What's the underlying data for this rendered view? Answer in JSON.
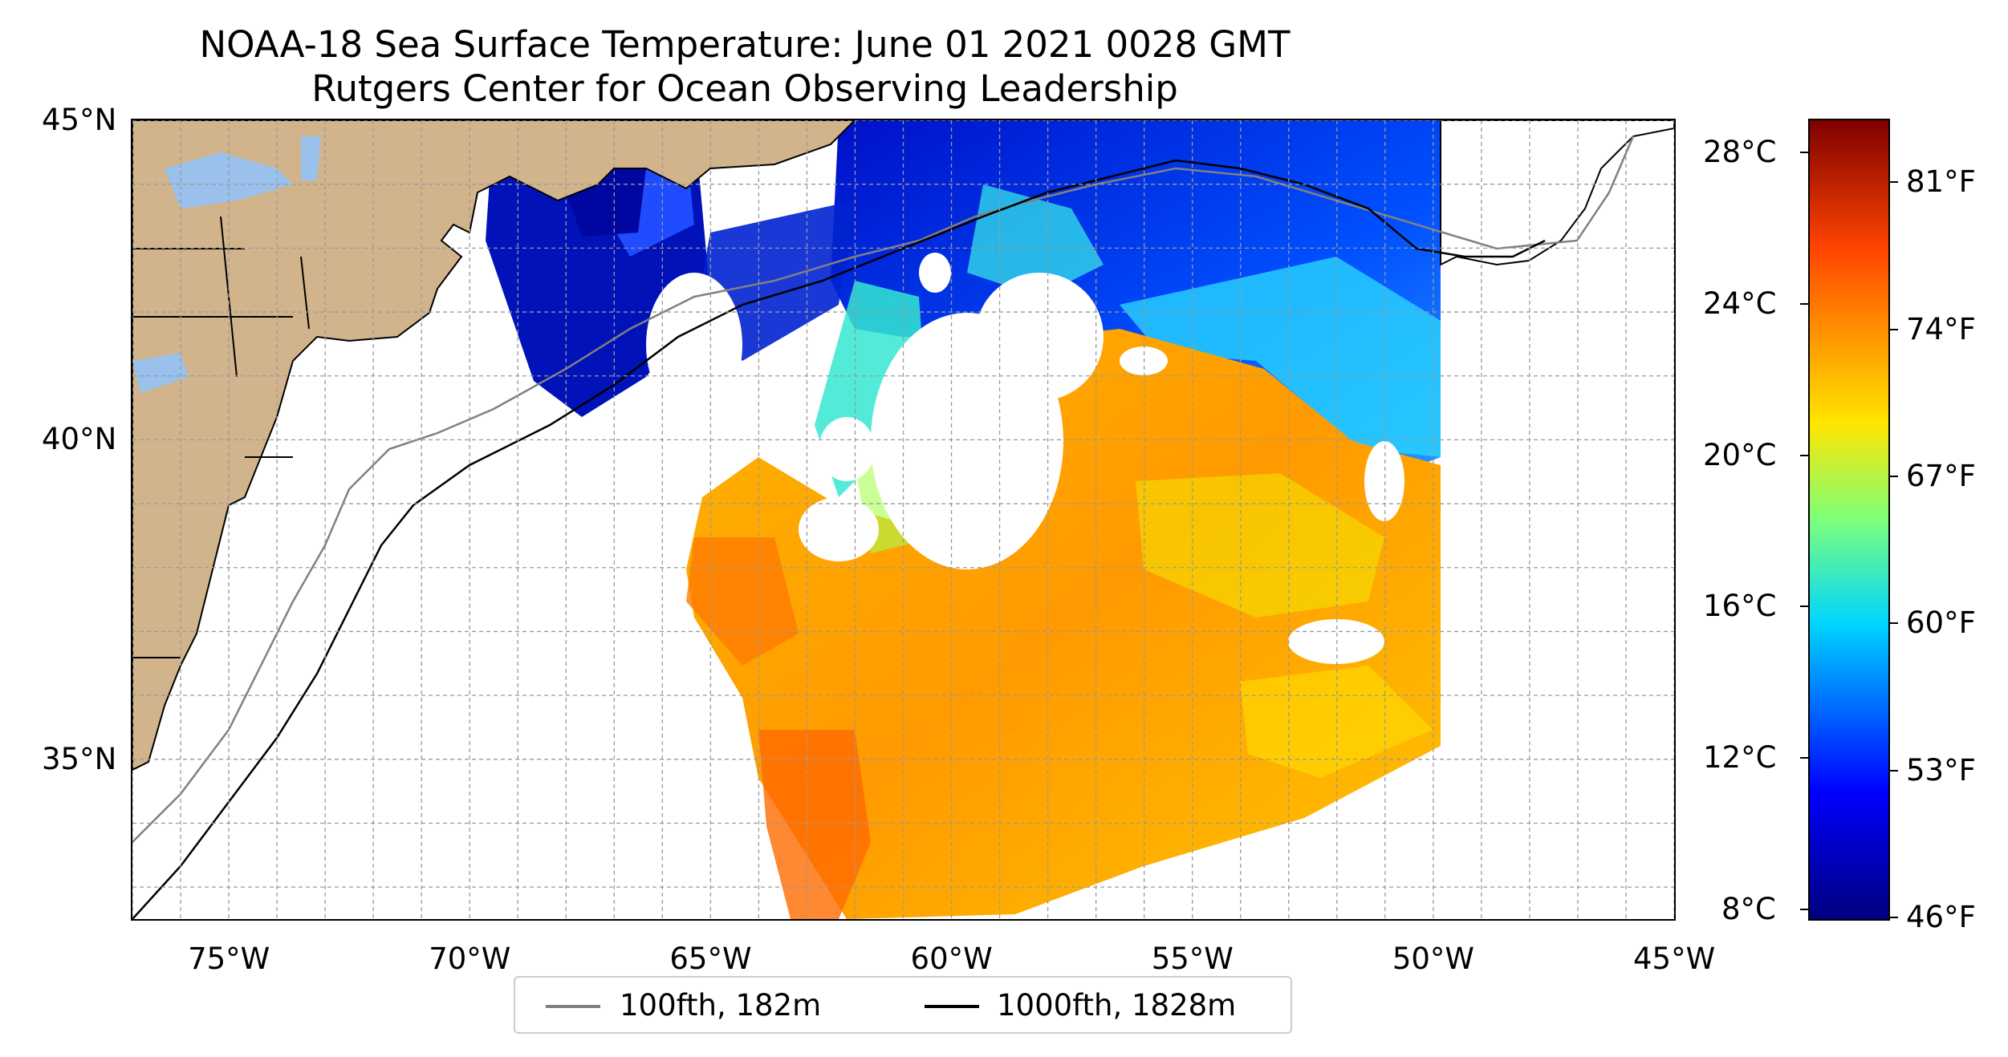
{
  "title": {
    "line1": "NOAA-18 Sea Surface Temperature: June 01 2021 0028 GMT",
    "line2": "Rutgers Center for Ocean Observing Leadership"
  },
  "map": {
    "lon_range": [
      -77,
      -45
    ],
    "lat_range": [
      32.5,
      45
    ],
    "lon_ticks": [
      {
        "value": -75,
        "label": "75°W"
      },
      {
        "value": -70,
        "label": "70°W"
      },
      {
        "value": -65,
        "label": "65°W"
      },
      {
        "value": -60,
        "label": "60°W"
      },
      {
        "value": -55,
        "label": "55°W"
      },
      {
        "value": -50,
        "label": "50°W"
      },
      {
        "value": -45,
        "label": "45°W"
      }
    ],
    "lat_ticks": [
      {
        "value": 45,
        "label": "45°N"
      },
      {
        "value": 40,
        "label": "40°N"
      },
      {
        "value": 35,
        "label": "35°N"
      }
    ],
    "gridlines": true,
    "land_color": "#d2b48c",
    "lake_color": "#9ac0ec"
  },
  "legend": {
    "items": [
      {
        "label": "100fth, 182m",
        "color": "#808080"
      },
      {
        "label": "1000fth, 1828m",
        "color": "#000000"
      }
    ],
    "placement": "bottom-center"
  },
  "colorbar": {
    "colormap": "jet",
    "celsius_range": [
      7.7,
      28.9
    ],
    "celsius_ticks": [
      {
        "value": 8,
        "label": "8°C"
      },
      {
        "value": 12,
        "label": "12°C"
      },
      {
        "value": 16,
        "label": "16°C"
      },
      {
        "value": 20,
        "label": "20°C"
      },
      {
        "value": 24,
        "label": "24°C"
      },
      {
        "value": 28,
        "label": "28°C"
      }
    ],
    "fahrenheit_ticks": [
      {
        "value": 46,
        "label": "46°F"
      },
      {
        "value": 53,
        "label": "53°F"
      },
      {
        "value": 60,
        "label": "60°F"
      },
      {
        "value": 67,
        "label": "67°F"
      },
      {
        "value": 74,
        "label": "74°F"
      },
      {
        "value": 81,
        "label": "81°F"
      }
    ]
  }
}
